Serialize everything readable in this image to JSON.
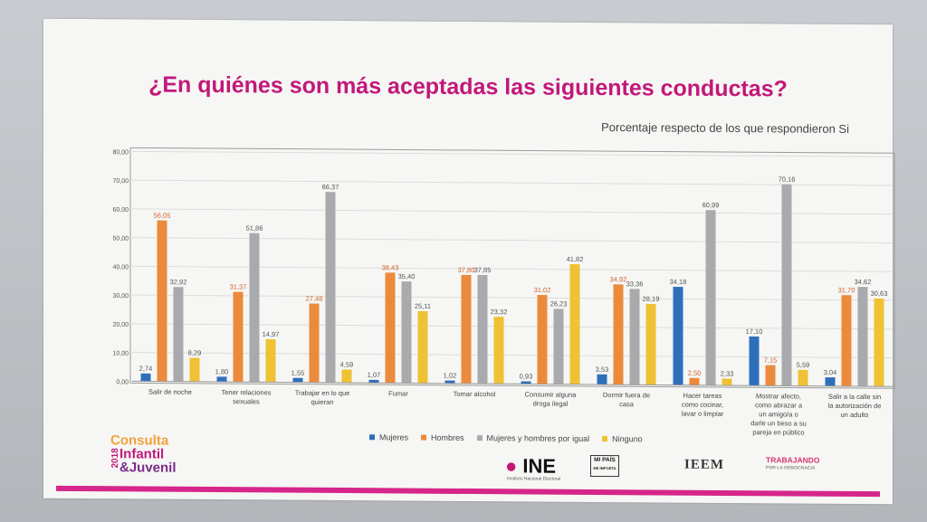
{
  "slide": {
    "title": "¿En quiénes son más aceptadas las siguientes conductas?",
    "subtitle": "Porcentaje respecto de los que respondieron Si"
  },
  "colors": {
    "title": "#c2187a",
    "mujeres": "#2e6fbb",
    "hombres": "#ec8a3c",
    "ambos": "#a9aaad",
    "ninguno": "#efc233",
    "footer_bar": "#d6268a"
  },
  "legend": {
    "items": [
      "Mujeres",
      "Hombres",
      "Mujeres y hombres por igual",
      "Ninguno"
    ]
  },
  "chart_data": {
    "type": "bar",
    "title": "",
    "xlabel": "",
    "ylabel": "",
    "ylim": [
      0,
      80
    ],
    "yticks": [
      "0,00",
      "10,00",
      "20,00",
      "30,00",
      "40,00",
      "50,00",
      "60,00",
      "70,00",
      "80,00"
    ],
    "grid": true,
    "legend_position": "bottom",
    "categories": [
      [
        "Salir de noche"
      ],
      [
        "Tener relaciones",
        "sexuales"
      ],
      [
        "Trabajar en lo que",
        "quieran"
      ],
      [
        "Fumar"
      ],
      [
        "Tomar alcohol"
      ],
      [
        "Consumir alguna",
        "droga ilegal"
      ],
      [
        "Dormir fuera de",
        "casa"
      ],
      [
        "Hacer tareas",
        "como cocinar,",
        "lavar o limpiar"
      ],
      [
        "Mostrar afecto,",
        "como abrazar a",
        "un amigo/a o",
        "darle un beso a su",
        "pareja en público"
      ],
      [
        "Salir a la calle sin",
        "la autorización de",
        "un adulto"
      ]
    ],
    "series": [
      {
        "name": "Mujeres",
        "values": [
          2.74,
          1.8,
          1.55,
          1.07,
          1.02,
          0.93,
          3.53,
          34.18,
          17.1,
          3.04
        ],
        "labels": [
          "2,74",
          "1,80",
          "1,55",
          "1,07",
          "1,02",
          "0,93",
          "3,53",
          "34,18",
          "17,10",
          "3,04"
        ]
      },
      {
        "name": "Hombres",
        "values": [
          56.05,
          31.37,
          27.48,
          38.43,
          37.8,
          31.02,
          34.92,
          2.5,
          7.15,
          31.7
        ],
        "labels": [
          "56,05",
          "31,37",
          "27,48",
          "38,43",
          "37,80",
          "31,02",
          "34,92",
          "2,50",
          "7,15",
          "31,70"
        ]
      },
      {
        "name": "Mujeres y hombres por igual",
        "values": [
          32.92,
          51.86,
          66.37,
          35.4,
          37.85,
          26.23,
          33.36,
          60.99,
          70.16,
          34.62
        ],
        "labels": [
          "32,92",
          "51,86",
          "66,37",
          "35,40",
          "37,85",
          "26,23",
          "33,36",
          "60,99",
          "70,16",
          "34,62"
        ]
      },
      {
        "name": "Ninguno",
        "values": [
          8.29,
          14.97,
          4.59,
          25.11,
          23.32,
          41.82,
          28.19,
          2.33,
          5.59,
          30.63
        ],
        "labels": [
          "8,29",
          "14,97",
          "4,59",
          "25,11",
          "23,32",
          "41,82",
          "28,19",
          "2,33",
          "5,59",
          "30,63"
        ]
      }
    ]
  },
  "footer": {
    "consulta_logo": [
      "Consulta",
      "Infantil",
      "&Juvenil"
    ],
    "consulta_year": "2018",
    "ine_logo": "INE",
    "ine_subtitle": "Instituto Nacional Electoral",
    "mipais_logo": [
      "MI PAÍS",
      "ME IMPORTA"
    ],
    "ieem_logo": "IEEM",
    "trabajando_logo": [
      "TRABAJANDO",
      "POR LA DEMOCRACIA"
    ]
  }
}
